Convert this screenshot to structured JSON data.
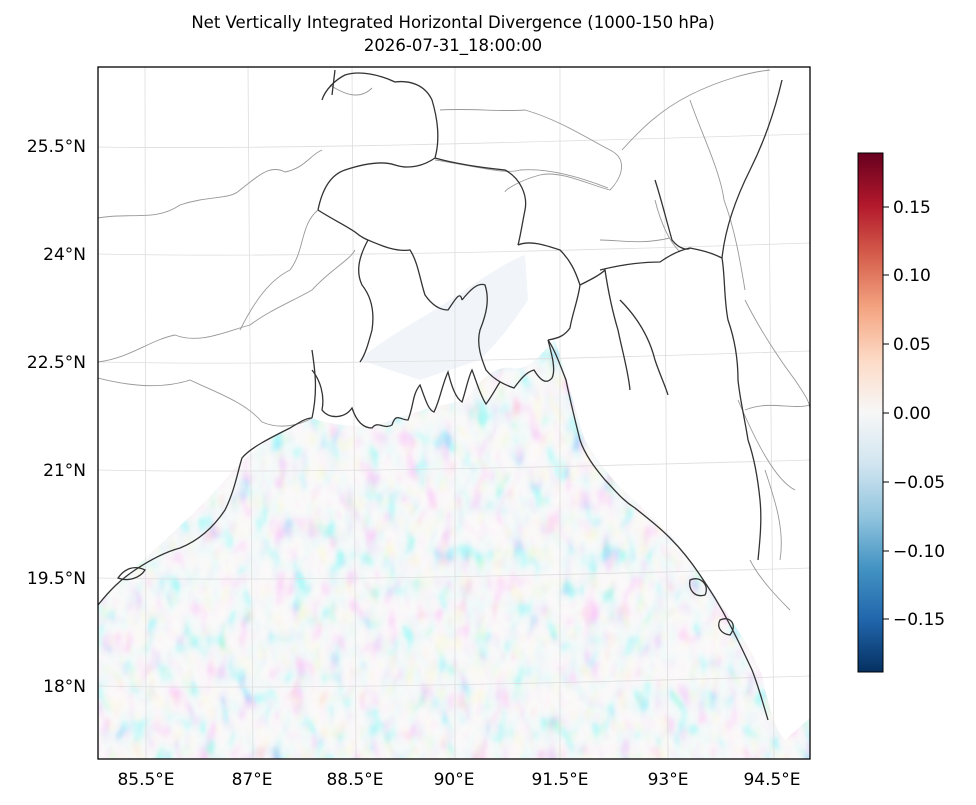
{
  "figure": {
    "title": "Net Vertically Integrated Horizontal Divergence (1000-150 hPa)",
    "subtitle": "2026-07-31_18:00:00"
  },
  "map": {
    "lon_range": [
      84.8,
      95.3
    ],
    "lat_range": [
      17.0,
      26.8
    ],
    "lon_ticks": [
      "85.5°E",
      "87°E",
      "88.5°E",
      "90°E",
      "91.5°E",
      "93°E",
      "94.5°E"
    ],
    "lat_ticks": [
      "25.5°N",
      "24°N",
      "22.5°N",
      "21°N",
      "19.5°N",
      "18°N"
    ],
    "gridlines": true,
    "features": [
      "coastline",
      "country-borders",
      "state-borders"
    ]
  },
  "colorbar": {
    "cmap": "RdBu_r",
    "range": [
      -0.19,
      0.19
    ],
    "ticks": [
      "0.15",
      "0.10",
      "0.05",
      "0.00",
      "−0.05",
      "−0.10",
      "−0.15"
    ],
    "colors": [
      "#67001f",
      "#b2182b",
      "#d6604d",
      "#f4a582",
      "#fddbc7",
      "#f7f7f7",
      "#d1e5f0",
      "#92c5de",
      "#4393c3",
      "#2166ac",
      "#053061"
    ]
  }
}
